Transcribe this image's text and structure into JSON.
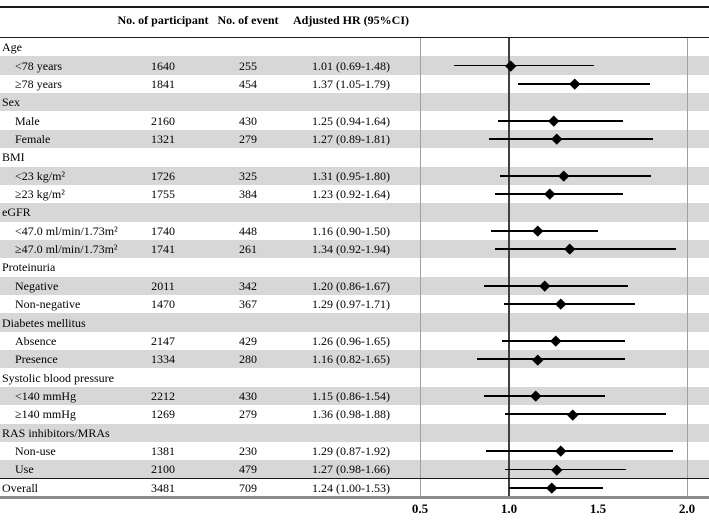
{
  "chart_data": {
    "type": "table",
    "subtype": "forest-plot",
    "columns": {
      "label": "",
      "participants": "No. of participant",
      "events": "No. of event",
      "hr": "Adjusted HR (95%CI)"
    },
    "axis": {
      "xlim": [
        0.5,
        2.0
      ],
      "ticks": [
        {
          "label": "0.5",
          "value": 0.5
        },
        {
          "label": "1.0",
          "value": 1.0
        },
        {
          "label": "1.5",
          "value": 1.5
        },
        {
          "label": "2.0",
          "value": 2.0
        }
      ],
      "reference_line": 1.0,
      "gridline_values": [
        0.5,
        2.0
      ],
      "scale": "linear"
    },
    "rows": [
      {
        "label": "Age",
        "type": "category",
        "shaded": false
      },
      {
        "label": "<78 years",
        "type": "data",
        "shaded": true,
        "participants": "1640",
        "events": "255",
        "hr_text": "1.01 (0.69-1.48)",
        "hr": 1.01,
        "lo": 0.69,
        "hi": 1.48
      },
      {
        "label": "≥78 years",
        "type": "data",
        "shaded": false,
        "participants": "1841",
        "events": "454",
        "hr_text": "1.37 (1.05-1.79)",
        "hr": 1.37,
        "lo": 1.05,
        "hi": 1.79
      },
      {
        "label": "Sex",
        "type": "category",
        "shaded": true
      },
      {
        "label": "Male",
        "type": "data",
        "shaded": false,
        "participants": "2160",
        "events": "430",
        "hr_text": "1.25 (0.94-1.64)",
        "hr": 1.25,
        "lo": 0.94,
        "hi": 1.64
      },
      {
        "label": "Female",
        "type": "data",
        "shaded": true,
        "participants": "1321",
        "events": "279",
        "hr_text": "1.27 (0.89-1.81)",
        "hr": 1.27,
        "lo": 0.89,
        "hi": 1.81
      },
      {
        "label": "BMI",
        "type": "category",
        "shaded": false
      },
      {
        "label": "<23 kg/m²",
        "type": "data",
        "shaded": true,
        "participants": "1726",
        "events": "325",
        "hr_text": "1.31 (0.95-1.80)",
        "hr": 1.31,
        "lo": 0.95,
        "hi": 1.8
      },
      {
        "label": "≥23 kg/m²",
        "type": "data",
        "shaded": false,
        "participants": "1755",
        "events": "384",
        "hr_text": "1.23 (0.92-1.64)",
        "hr": 1.23,
        "lo": 0.92,
        "hi": 1.64
      },
      {
        "label": "eGFR",
        "type": "category",
        "shaded": true
      },
      {
        "label": "<47.0 ml/min/1.73m²",
        "type": "data",
        "shaded": false,
        "participants": "1740",
        "events": "448",
        "hr_text": "1.16 (0.90-1.50)",
        "hr": 1.16,
        "lo": 0.9,
        "hi": 1.5
      },
      {
        "label": "≥47.0 ml/min/1.73m²",
        "type": "data",
        "shaded": true,
        "participants": "1741",
        "events": "261",
        "hr_text": "1.34 (0.92-1.94)",
        "hr": 1.34,
        "lo": 0.92,
        "hi": 1.94
      },
      {
        "label": "Proteinuria",
        "type": "category",
        "shaded": false
      },
      {
        "label": "Negative",
        "type": "data",
        "shaded": true,
        "participants": "2011",
        "events": "342",
        "hr_text": "1.20 (0.86-1.67)",
        "hr": 1.2,
        "lo": 0.86,
        "hi": 1.67
      },
      {
        "label": "Non-negative",
        "type": "data",
        "shaded": false,
        "participants": "1470",
        "events": "367",
        "hr_text": "1.29 (0.97-1.71)",
        "hr": 1.29,
        "lo": 0.97,
        "hi": 1.71
      },
      {
        "label": "Diabetes mellitus",
        "type": "category",
        "shaded": true
      },
      {
        "label": "Absence",
        "type": "data",
        "shaded": false,
        "participants": "2147",
        "events": "429",
        "hr_text": "1.26 (0.96-1.65)",
        "hr": 1.26,
        "lo": 0.96,
        "hi": 1.65
      },
      {
        "label": "Presence",
        "type": "data",
        "shaded": true,
        "participants": "1334",
        "events": "280",
        "hr_text": "1.16 (0.82-1.65)",
        "hr": 1.16,
        "lo": 0.82,
        "hi": 1.65
      },
      {
        "label": "Systolic blood pressure",
        "type": "category",
        "shaded": false
      },
      {
        "label": "<140 mmHg",
        "type": "data",
        "shaded": true,
        "participants": "2212",
        "events": "430",
        "hr_text": "1.15 (0.86-1.54)",
        "hr": 1.15,
        "lo": 0.86,
        "hi": 1.54
      },
      {
        "label": "≥140 mmHg",
        "type": "data",
        "shaded": false,
        "participants": "1269",
        "events": "279",
        "hr_text": "1.36 (0.98-1.88)",
        "hr": 1.36,
        "lo": 0.98,
        "hi": 1.88
      },
      {
        "label": "RAS inhibitors/MRAs",
        "type": "category",
        "shaded": true
      },
      {
        "label": "Non-use",
        "type": "data",
        "shaded": false,
        "participants": "1381",
        "events": "230",
        "hr_text": "1.29 (0.87-1.92)",
        "hr": 1.29,
        "lo": 0.87,
        "hi": 1.92
      },
      {
        "label": "Use",
        "type": "data",
        "shaded": true,
        "participants": "2100",
        "events": "479",
        "hr_text": "1.27 (0.98-1.66)",
        "hr": 1.27,
        "lo": 0.98,
        "hi": 1.66
      },
      {
        "label": "Overall",
        "type": "data",
        "flush": true,
        "shaded": false,
        "participants": "3481",
        "events": "709",
        "hr_text": "1.24 (1.00-1.53)",
        "hr": 1.24,
        "lo": 1.0,
        "hi": 1.53
      }
    ]
  },
  "colors": {
    "row_shade": "#d7d7d7",
    "reference_line": "#404040",
    "gridline": "#a0a0a0",
    "axis_line": "#8c8c8c",
    "marker": "#000000",
    "rule": "#1a1a1a",
    "text": "#000000"
  }
}
